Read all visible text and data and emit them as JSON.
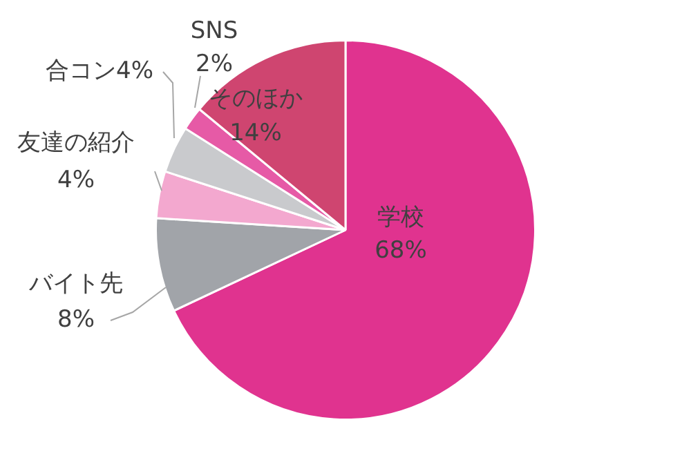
{
  "chart_data": {
    "type": "pie",
    "categories": [
      "学校",
      "バイト先",
      "友達の紹介",
      "合コン",
      "SNS",
      "そのほか"
    ],
    "values": [
      68,
      8,
      4,
      4,
      2,
      14
    ],
    "value_labels": [
      "68%",
      "8%",
      "4%",
      "4%",
      "2%",
      "14%"
    ],
    "colors": [
      "#e0338f",
      "#a1a4a9",
      "#f3a8cf",
      "#c9cacd",
      "#e65aa6",
      "#cf4570"
    ],
    "legend": false
  }
}
